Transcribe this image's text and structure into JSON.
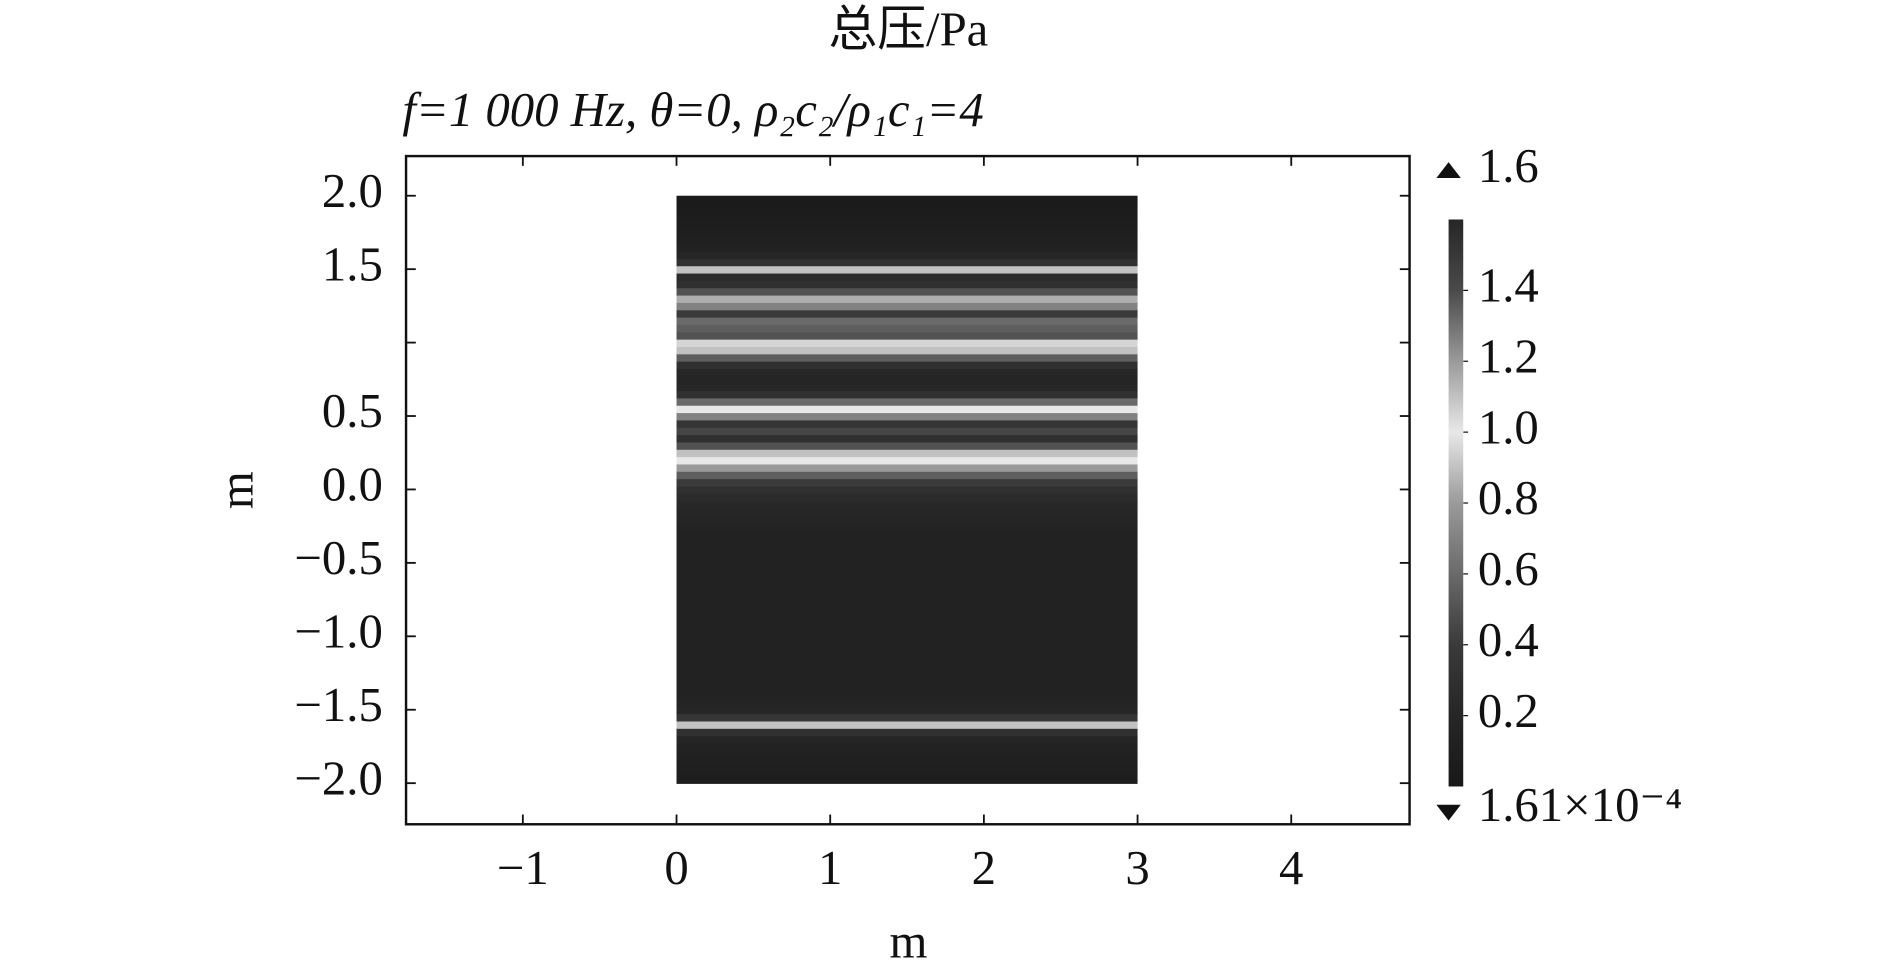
{
  "chart_data": {
    "type": "heatmap",
    "title": "总压/Pa",
    "subtitle": "f=1 000 Hz, θ=0, ρ₂c₂/ρ₁c₁=4",
    "xlabel": "m",
    "ylabel": "m",
    "xlim": [
      -1.76,
      4.77
    ],
    "ylim": [
      -2.28,
      2.27
    ],
    "xticks": [
      {
        "value": -1,
        "label": "−1"
      },
      0,
      1,
      2,
      3,
      4
    ],
    "yticks": [
      {
        "value": 2,
        "label": "2.0"
      },
      {
        "value": 1.5,
        "label": "1.5"
      },
      {
        "value": 1
      },
      {
        "value": 0.5,
        "label": "0.5"
      },
      {
        "value": 0,
        "label": "0.0"
      },
      {
        "value": -0.5,
        "label": "−0.5"
      },
      {
        "value": -1,
        "label": "−1.0"
      },
      {
        "value": -1.5,
        "label": "−1.5"
      },
      {
        "value": -2,
        "label": "−2.0"
      }
    ],
    "field_x": [
      0,
      3
    ],
    "y": [
      -2.0,
      -1.95,
      -1.9,
      -1.85,
      -1.8,
      -1.75,
      -1.7,
      -1.65,
      -1.6,
      -1.55,
      -1.5,
      -1.45,
      -1.4,
      -1.35,
      -1.3,
      -1.25,
      -1.2,
      -1.15,
      -1.1,
      -1.05,
      -1.0,
      -0.95,
      -0.9,
      -0.85,
      -0.8,
      -0.75,
      -0.7,
      -0.65,
      -0.6,
      -0.55,
      -0.5,
      -0.45,
      -0.4,
      -0.35,
      -0.3,
      -0.25,
      -0.2,
      -0.15,
      -0.1,
      -0.05,
      0.0,
      0.05,
      0.1,
      0.15,
      0.2,
      0.25,
      0.3,
      0.35,
      0.4,
      0.45,
      0.5,
      0.55,
      0.6,
      0.65,
      0.7,
      0.75,
      0.8,
      0.85,
      0.9,
      0.95,
      1.0,
      1.05,
      1.1,
      1.15,
      1.2,
      1.25,
      1.3,
      1.35,
      1.4,
      1.45,
      1.5,
      1.55,
      1.6,
      1.65,
      1.7,
      1.75,
      1.8,
      1.85,
      1.9,
      1.95,
      2.0
    ],
    "values": [
      0.08,
      0.09,
      0.1,
      0.11,
      0.13,
      0.15,
      0.18,
      0.3,
      0.9,
      0.35,
      0.2,
      0.17,
      0.15,
      0.15,
      0.15,
      0.15,
      0.15,
      0.15,
      0.15,
      0.15,
      0.15,
      0.15,
      0.15,
      0.15,
      0.15,
      0.15,
      0.15,
      0.15,
      0.15,
      0.15,
      0.15,
      0.15,
      0.15,
      0.15,
      0.15,
      0.16,
      0.18,
      0.2,
      0.22,
      0.25,
      0.3,
      0.4,
      0.55,
      0.8,
      1.0,
      0.9,
      0.5,
      0.3,
      0.45,
      0.35,
      0.7,
      1.0,
      0.6,
      0.3,
      0.2,
      0.18,
      0.2,
      0.3,
      0.55,
      0.9,
      1.05,
      0.5,
      0.55,
      0.6,
      0.4,
      0.7,
      1.15,
      0.5,
      0.3,
      0.25,
      0.9,
      0.3,
      0.2,
      0.15,
      0.12,
      0.1,
      0.08,
      0.07,
      0.06,
      0.05,
      0.05
    ],
    "colormap": [
      "#181818",
      "#262626",
      "#3a3a3a",
      "#6a6a6a",
      "#9a9a9a",
      "#e8e8e8",
      "#9a9a9a",
      "#4a4a4a",
      "#262626"
    ],
    "clim": [
      {
        "value": 0.000161,
        "label": "1.61×10⁻⁴"
      },
      {
        "value": 1.6,
        "label": "1.6"
      }
    ],
    "cticks": [
      {
        "value": 1.4,
        "label": "1.4"
      },
      {
        "value": 1.2,
        "label": "1.2"
      },
      {
        "value": 1.0,
        "label": "1.0"
      },
      {
        "value": 0.8,
        "label": "0.8"
      },
      {
        "value": 0.6,
        "label": "0.6"
      },
      {
        "value": 0.4,
        "label": "0.4"
      },
      {
        "value": 0.2,
        "label": "0.2"
      }
    ]
  }
}
